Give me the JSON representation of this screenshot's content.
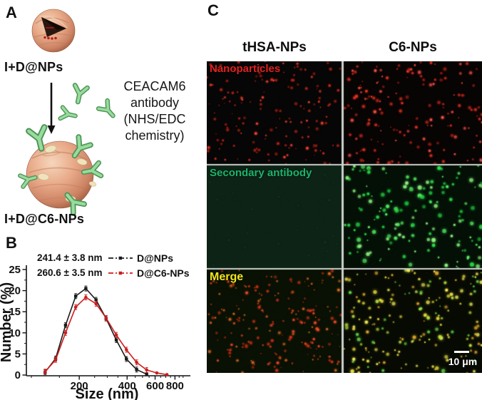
{
  "panel_a": {
    "label": "A",
    "top_particle_label": "I+D@NPs",
    "reaction_lines": [
      "CEACAM6",
      "antibody",
      "(NHS/EDC",
      "chemistry)"
    ],
    "bottom_particle_label": "I+D@C6-NPs"
  },
  "panel_b": {
    "label": "B"
  },
  "chart_data": {
    "type": "line",
    "x_scale": "log",
    "xlabel": "Size (nm)",
    "ylabel": "Number (%)",
    "xlim": [
      93,
      1000
    ],
    "ylim": [
      0,
      25
    ],
    "y_major_ticks": [
      0,
      5,
      10,
      15,
      20,
      25
    ],
    "x_major_ticks": [
      200,
      400,
      600,
      800
    ],
    "x_minor_ticks": [
      100,
      150,
      250,
      300,
      350,
      450,
      500,
      550,
      650,
      700,
      750,
      850,
      900
    ],
    "grid": false,
    "legend_position": "top",
    "error_bar": 0.6,
    "series": [
      {
        "name": "D@NPs",
        "annotation": "241.4 ± 3.8 nm",
        "color": "#1a1a1a",
        "marker": "square",
        "x": [
          122,
          142,
          164,
          190,
          220,
          255,
          295,
          342,
          396,
          459,
          531
        ],
        "y": [
          0.7,
          3.9,
          11.8,
          18.7,
          20.5,
          17.8,
          13.4,
          8.3,
          3.8,
          1.3,
          0.2
        ]
      },
      {
        "name": "D@C6-NPs",
        "annotation": "260.6 ± 3.5 nm",
        "color": "#cc1d1d",
        "marker": "circle",
        "x": [
          122,
          142,
          164,
          190,
          220,
          255,
          295,
          342,
          396,
          459,
          531,
          615,
          712
        ],
        "y": [
          0.8,
          3.6,
          10.0,
          16.1,
          18.4,
          16.9,
          13.5,
          9.5,
          6.0,
          3.0,
          1.2,
          0.5,
          0.1
        ]
      }
    ]
  },
  "panel_c": {
    "label": "C",
    "columns": [
      "tHSA-NPs",
      "C6-NPs"
    ],
    "rows": [
      {
        "label": "Nanoparticles",
        "label_color": "#e02020"
      },
      {
        "label": "Secondary antibody",
        "label_color": "#1db36b"
      },
      {
        "label": "Merge",
        "label_color": "#f0e41c"
      }
    ],
    "scale_bar_text": "10 μm",
    "grid_line_color": "#cdd2cd",
    "cells": [
      {
        "id": "thsa-nanoparticles",
        "bg": "#060606",
        "palettes": [
          {
            "colors": [
              "#e22f1e",
              "#ff4633",
              "#b5271a",
              "#8f1d10"
            ],
            "count": 160,
            "rmin": 0.6,
            "rmax": 2.0,
            "alpha": 0.95
          },
          {
            "colors": [
              "#3c0f08"
            ],
            "count": 220,
            "rmin": 0.3,
            "rmax": 0.8,
            "alpha": 0.5
          }
        ]
      },
      {
        "id": "c6-nanoparticles",
        "bg": "#070404",
        "palettes": [
          {
            "colors": [
              "#ea3322",
              "#ff5242",
              "#c22b1c",
              "#9a2012"
            ],
            "count": 170,
            "rmin": 0.7,
            "rmax": 2.4,
            "alpha": 0.95
          },
          {
            "colors": [
              "#401008"
            ],
            "count": 200,
            "rmin": 0.3,
            "rmax": 0.8,
            "alpha": 0.5
          }
        ]
      },
      {
        "id": "thsa-secondary",
        "bg": "#0d2316",
        "palettes": [
          {
            "colors": [
              "#12301f",
              "#154028"
            ],
            "count": 60,
            "rmin": 0.5,
            "rmax": 1.4,
            "alpha": 0.6
          }
        ]
      },
      {
        "id": "c6-secondary",
        "bg": "#040f06",
        "palettes": [
          {
            "colors": [
              "#2de34b",
              "#55f263",
              "#19bb3a",
              "#8cf57e"
            ],
            "count": 150,
            "rmin": 0.8,
            "rmax": 3.0,
            "alpha": 0.95
          },
          {
            "colors": [
              "#0c3a14"
            ],
            "count": 180,
            "rmin": 0.3,
            "rmax": 0.9,
            "alpha": 0.5
          }
        ]
      },
      {
        "id": "thsa-merge",
        "bg": "#081104",
        "palettes": [
          {
            "colors": [
              "#dd3318",
              "#f54a2c",
              "#a72c12",
              "#e2691e"
            ],
            "count": 200,
            "rmin": 0.6,
            "rmax": 2.1,
            "alpha": 0.9
          },
          {
            "colors": [
              "#3a1206"
            ],
            "count": 220,
            "rmin": 0.3,
            "rmax": 0.8,
            "alpha": 0.5
          }
        ]
      },
      {
        "id": "c6-merge",
        "bg": "#070a03",
        "palettes": [
          {
            "colors": [
              "#eee23c",
              "#f5ec55",
              "#b8e040",
              "#63d94a",
              "#dfa62a"
            ],
            "count": 190,
            "rmin": 0.7,
            "rmax": 2.6,
            "alpha": 0.95
          },
          {
            "colors": [
              "#2c2a08"
            ],
            "count": 200,
            "rmin": 0.3,
            "rmax": 0.8,
            "alpha": 0.5
          }
        ]
      }
    ]
  }
}
